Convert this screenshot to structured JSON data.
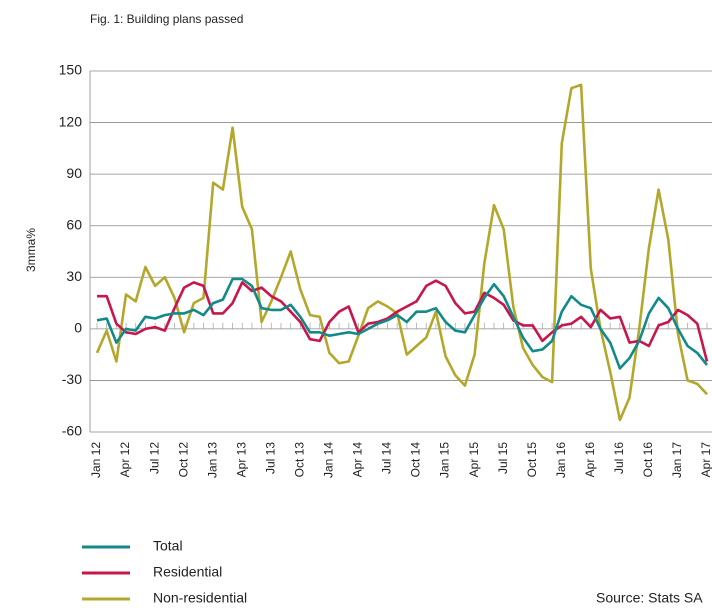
{
  "chart_data": {
    "type": "line",
    "title": "Fig. 1: Building plans passed",
    "y_label": "3mma%",
    "source": "Source: Stats SA",
    "categories": [
      "Jan 12",
      null,
      null,
      "Apr 12",
      null,
      null,
      "Jul 12",
      null,
      null,
      "Oct 12",
      null,
      null,
      "Jan 13",
      null,
      null,
      "Apr 13",
      null,
      null,
      "Jul 13",
      null,
      null,
      "Oct 13",
      null,
      null,
      "Jan 14",
      null,
      null,
      "Apr 14",
      null,
      null,
      "Jul 14",
      null,
      null,
      "Oct 14",
      null,
      null,
      "Jan 15",
      null,
      null,
      "Apr 15",
      null,
      null,
      "Jul 15",
      null,
      null,
      "Oct 15",
      null,
      null,
      "Jan 16",
      null,
      null,
      "Apr 16",
      null,
      null,
      "Jul 16",
      null,
      null,
      "Oct 16",
      null,
      null,
      "Jan 17",
      null,
      null,
      "Apr 17"
    ],
    "series": [
      {
        "name": "Total",
        "color": "#12898a",
        "values": [
          5,
          6,
          -8,
          0,
          -1,
          7,
          6,
          8,
          9,
          9,
          11,
          8,
          15,
          17,
          29,
          29,
          25,
          12,
          11,
          11,
          14,
          7,
          -2,
          -2,
          -4,
          -3,
          -2,
          -3,
          0,
          3,
          5,
          8,
          4,
          10,
          10,
          12,
          4,
          -1,
          -2,
          8,
          18,
          26,
          19,
          7,
          -5,
          -13,
          -12,
          -7,
          10,
          19,
          14,
          12,
          0,
          -8,
          -23,
          -17,
          -7,
          9,
          18,
          12,
          0,
          -10,
          -14,
          -21
        ]
      },
      {
        "name": "Residential",
        "color": "#c8164b",
        "values": [
          19,
          19,
          3,
          -2,
          -3,
          0,
          1,
          -1,
          12,
          24,
          27,
          25,
          9,
          9,
          15,
          27,
          22,
          24,
          19,
          16,
          10,
          4,
          -6,
          -7,
          4,
          10,
          13,
          -2,
          3,
          4,
          6,
          10,
          13,
          16,
          25,
          28,
          25,
          15,
          9,
          10,
          21,
          18,
          14,
          5,
          2,
          2,
          -7,
          -2,
          2,
          3,
          7,
          1,
          11,
          6,
          7,
          -8,
          -7,
          -10,
          2,
          4,
          11,
          8,
          3,
          -19
        ]
      },
      {
        "name": "Non-residential",
        "color": "#b3a82b",
        "values": [
          -14,
          -1,
          -19,
          20,
          16,
          36,
          25,
          30,
          18,
          -2,
          15,
          18,
          85,
          81,
          117,
          71,
          58,
          4,
          16,
          30,
          45,
          23,
          8,
          7,
          -14,
          -20,
          -19,
          -4,
          12,
          16,
          13,
          9,
          -15,
          -10,
          -5,
          10,
          -16,
          -27,
          -33,
          -15,
          38,
          72,
          58,
          13,
          -11,
          -21,
          -28,
          -31,
          108,
          140,
          142,
          35,
          0,
          -25,
          -53,
          -40,
          0,
          47,
          81,
          52,
          -3,
          -30,
          -32,
          -38
        ]
      }
    ],
    "ylim": [
      -60,
      150
    ],
    "yticks": [
      -60,
      -30,
      0,
      30,
      60,
      90,
      120,
      150
    ],
    "grid": true
  }
}
